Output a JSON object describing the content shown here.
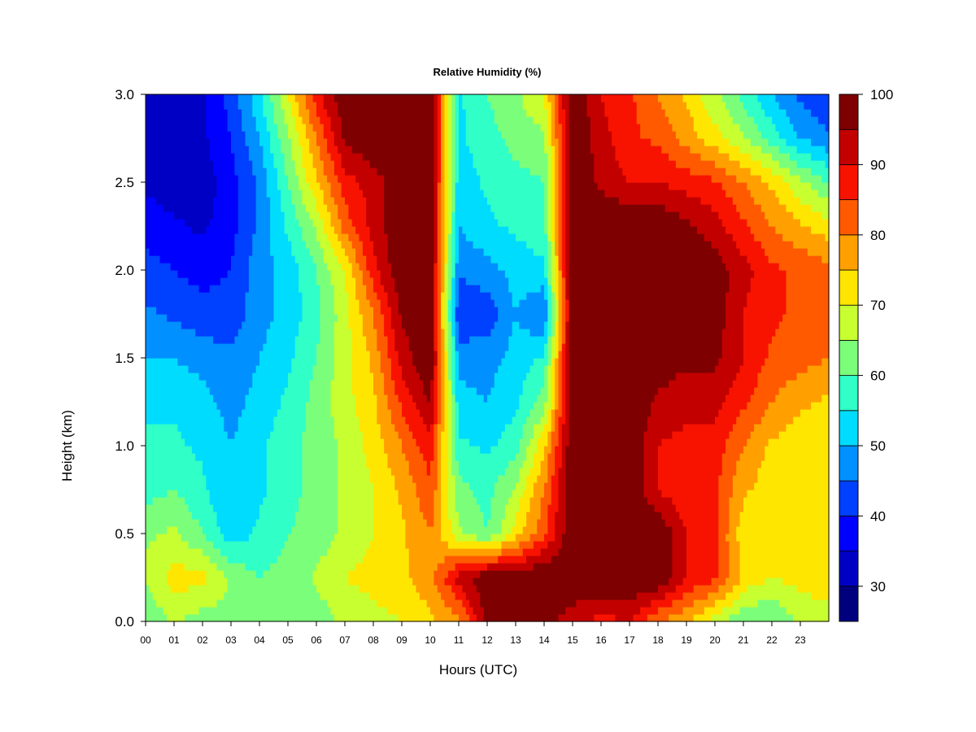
{
  "chart_data": {
    "type": "heatmap",
    "title": "Relative Humidity (%)",
    "xlabel": "Hours (UTC)",
    "ylabel": "Height (km)",
    "xlim": [
      0,
      24
    ],
    "ylim": [
      0.0,
      3.0
    ],
    "x_ticks": [
      "00",
      "01",
      "02",
      "03",
      "04",
      "05",
      "06",
      "07",
      "08",
      "09",
      "10",
      "11",
      "12",
      "13",
      "14",
      "15",
      "16",
      "17",
      "18",
      "19",
      "20",
      "21",
      "22",
      "23"
    ],
    "y_ticks": [
      "0.0",
      "0.5",
      "1.0",
      "1.5",
      "2.0",
      "2.5",
      "3.0"
    ],
    "colorbar": {
      "range": [
        25,
        100
      ],
      "levels": [
        25,
        30,
        35,
        40,
        45,
        50,
        55,
        60,
        65,
        70,
        75,
        80,
        85,
        90,
        95,
        100
      ],
      "colors": [
        "#00007f",
        "#0000c4",
        "#0000ff",
        "#0040ff",
        "#0090ff",
        "#00dcfe",
        "#30ffc7",
        "#7bff7b",
        "#c7ff30",
        "#ffe600",
        "#ffa000",
        "#ff5a00",
        "#f81300",
        "#c30000",
        "#7f0000"
      ],
      "tick_labels": [
        "30",
        "40",
        "50",
        "60",
        "70",
        "80",
        "90",
        "100"
      ],
      "tick_values": [
        30,
        40,
        50,
        60,
        70,
        80,
        90,
        100
      ]
    },
    "x_hours": [
      0,
      1,
      2,
      3,
      4,
      5,
      6,
      7,
      8,
      9,
      10,
      11,
      12,
      13,
      14,
      15,
      16,
      17,
      18,
      19,
      20,
      21,
      22,
      23,
      24
    ],
    "y_km": [
      0.0,
      0.25,
      0.5,
      0.75,
      1.0,
      1.25,
      1.5,
      1.75,
      2.0,
      2.25,
      2.5,
      2.75,
      3.0
    ],
    "rh_percent": [
      [
        60,
        66,
        62,
        64,
        60,
        60,
        62,
        66,
        68,
        70,
        74,
        78,
        97,
        97,
        97,
        92,
        88,
        90,
        80,
        76,
        68,
        60,
        60,
        66,
        66
      ],
      [
        66,
        72,
        72,
        64,
        60,
        62,
        66,
        70,
        72,
        74,
        78,
        92,
        100,
        100,
        100,
        100,
        100,
        100,
        100,
        90,
        86,
        74,
        70,
        72,
        74
      ],
      [
        64,
        66,
        60,
        52,
        56,
        60,
        62,
        66,
        70,
        74,
        80,
        66,
        60,
        72,
        84,
        100,
        100,
        100,
        100,
        90,
        86,
        72,
        70,
        70,
        70
      ],
      [
        58,
        60,
        56,
        50,
        54,
        58,
        62,
        66,
        70,
        76,
        84,
        62,
        58,
        66,
        80,
        100,
        100,
        100,
        90,
        86,
        86,
        76,
        72,
        70,
        70
      ],
      [
        56,
        56,
        54,
        50,
        54,
        58,
        62,
        66,
        72,
        80,
        88,
        56,
        54,
        58,
        74,
        100,
        100,
        100,
        90,
        88,
        88,
        80,
        74,
        72,
        72
      ],
      [
        54,
        54,
        52,
        48,
        52,
        56,
        62,
        68,
        74,
        86,
        96,
        52,
        50,
        54,
        62,
        100,
        100,
        100,
        94,
        92,
        92,
        86,
        80,
        76,
        74
      ],
      [
        50,
        50,
        48,
        46,
        50,
        54,
        60,
        68,
        76,
        92,
        100,
        48,
        48,
        52,
        56,
        100,
        100,
        100,
        98,
        96,
        96,
        90,
        84,
        82,
        80
      ],
      [
        46,
        44,
        42,
        42,
        48,
        52,
        58,
        68,
        80,
        96,
        100,
        40,
        42,
        50,
        44,
        100,
        100,
        100,
        100,
        100,
        98,
        90,
        86,
        84,
        82
      ],
      [
        42,
        40,
        38,
        40,
        48,
        52,
        60,
        70,
        88,
        100,
        100,
        46,
        48,
        52,
        54,
        100,
        100,
        100,
        100,
        100,
        98,
        92,
        86,
        84,
        82
      ],
      [
        38,
        36,
        34,
        38,
        46,
        56,
        66,
        82,
        92,
        100,
        100,
        50,
        54,
        56,
        58,
        100,
        100,
        100,
        100,
        96,
        92,
        86,
        80,
        76,
        72
      ],
      [
        34,
        32,
        32,
        38,
        46,
        60,
        74,
        88,
        92,
        100,
        100,
        52,
        56,
        58,
        60,
        100,
        94,
        90,
        90,
        88,
        86,
        80,
        74,
        66,
        60
      ],
      [
        32,
        32,
        34,
        40,
        50,
        64,
        80,
        96,
        100,
        100,
        100,
        54,
        58,
        62,
        64,
        100,
        92,
        86,
        84,
        78,
        72,
        66,
        58,
        50,
        46
      ],
      [
        32,
        30,
        34,
        42,
        54,
        70,
        88,
        100,
        100,
        100,
        100,
        54,
        60,
        64,
        70,
        100,
        90,
        86,
        80,
        74,
        66,
        58,
        50,
        44,
        40
      ]
    ]
  }
}
